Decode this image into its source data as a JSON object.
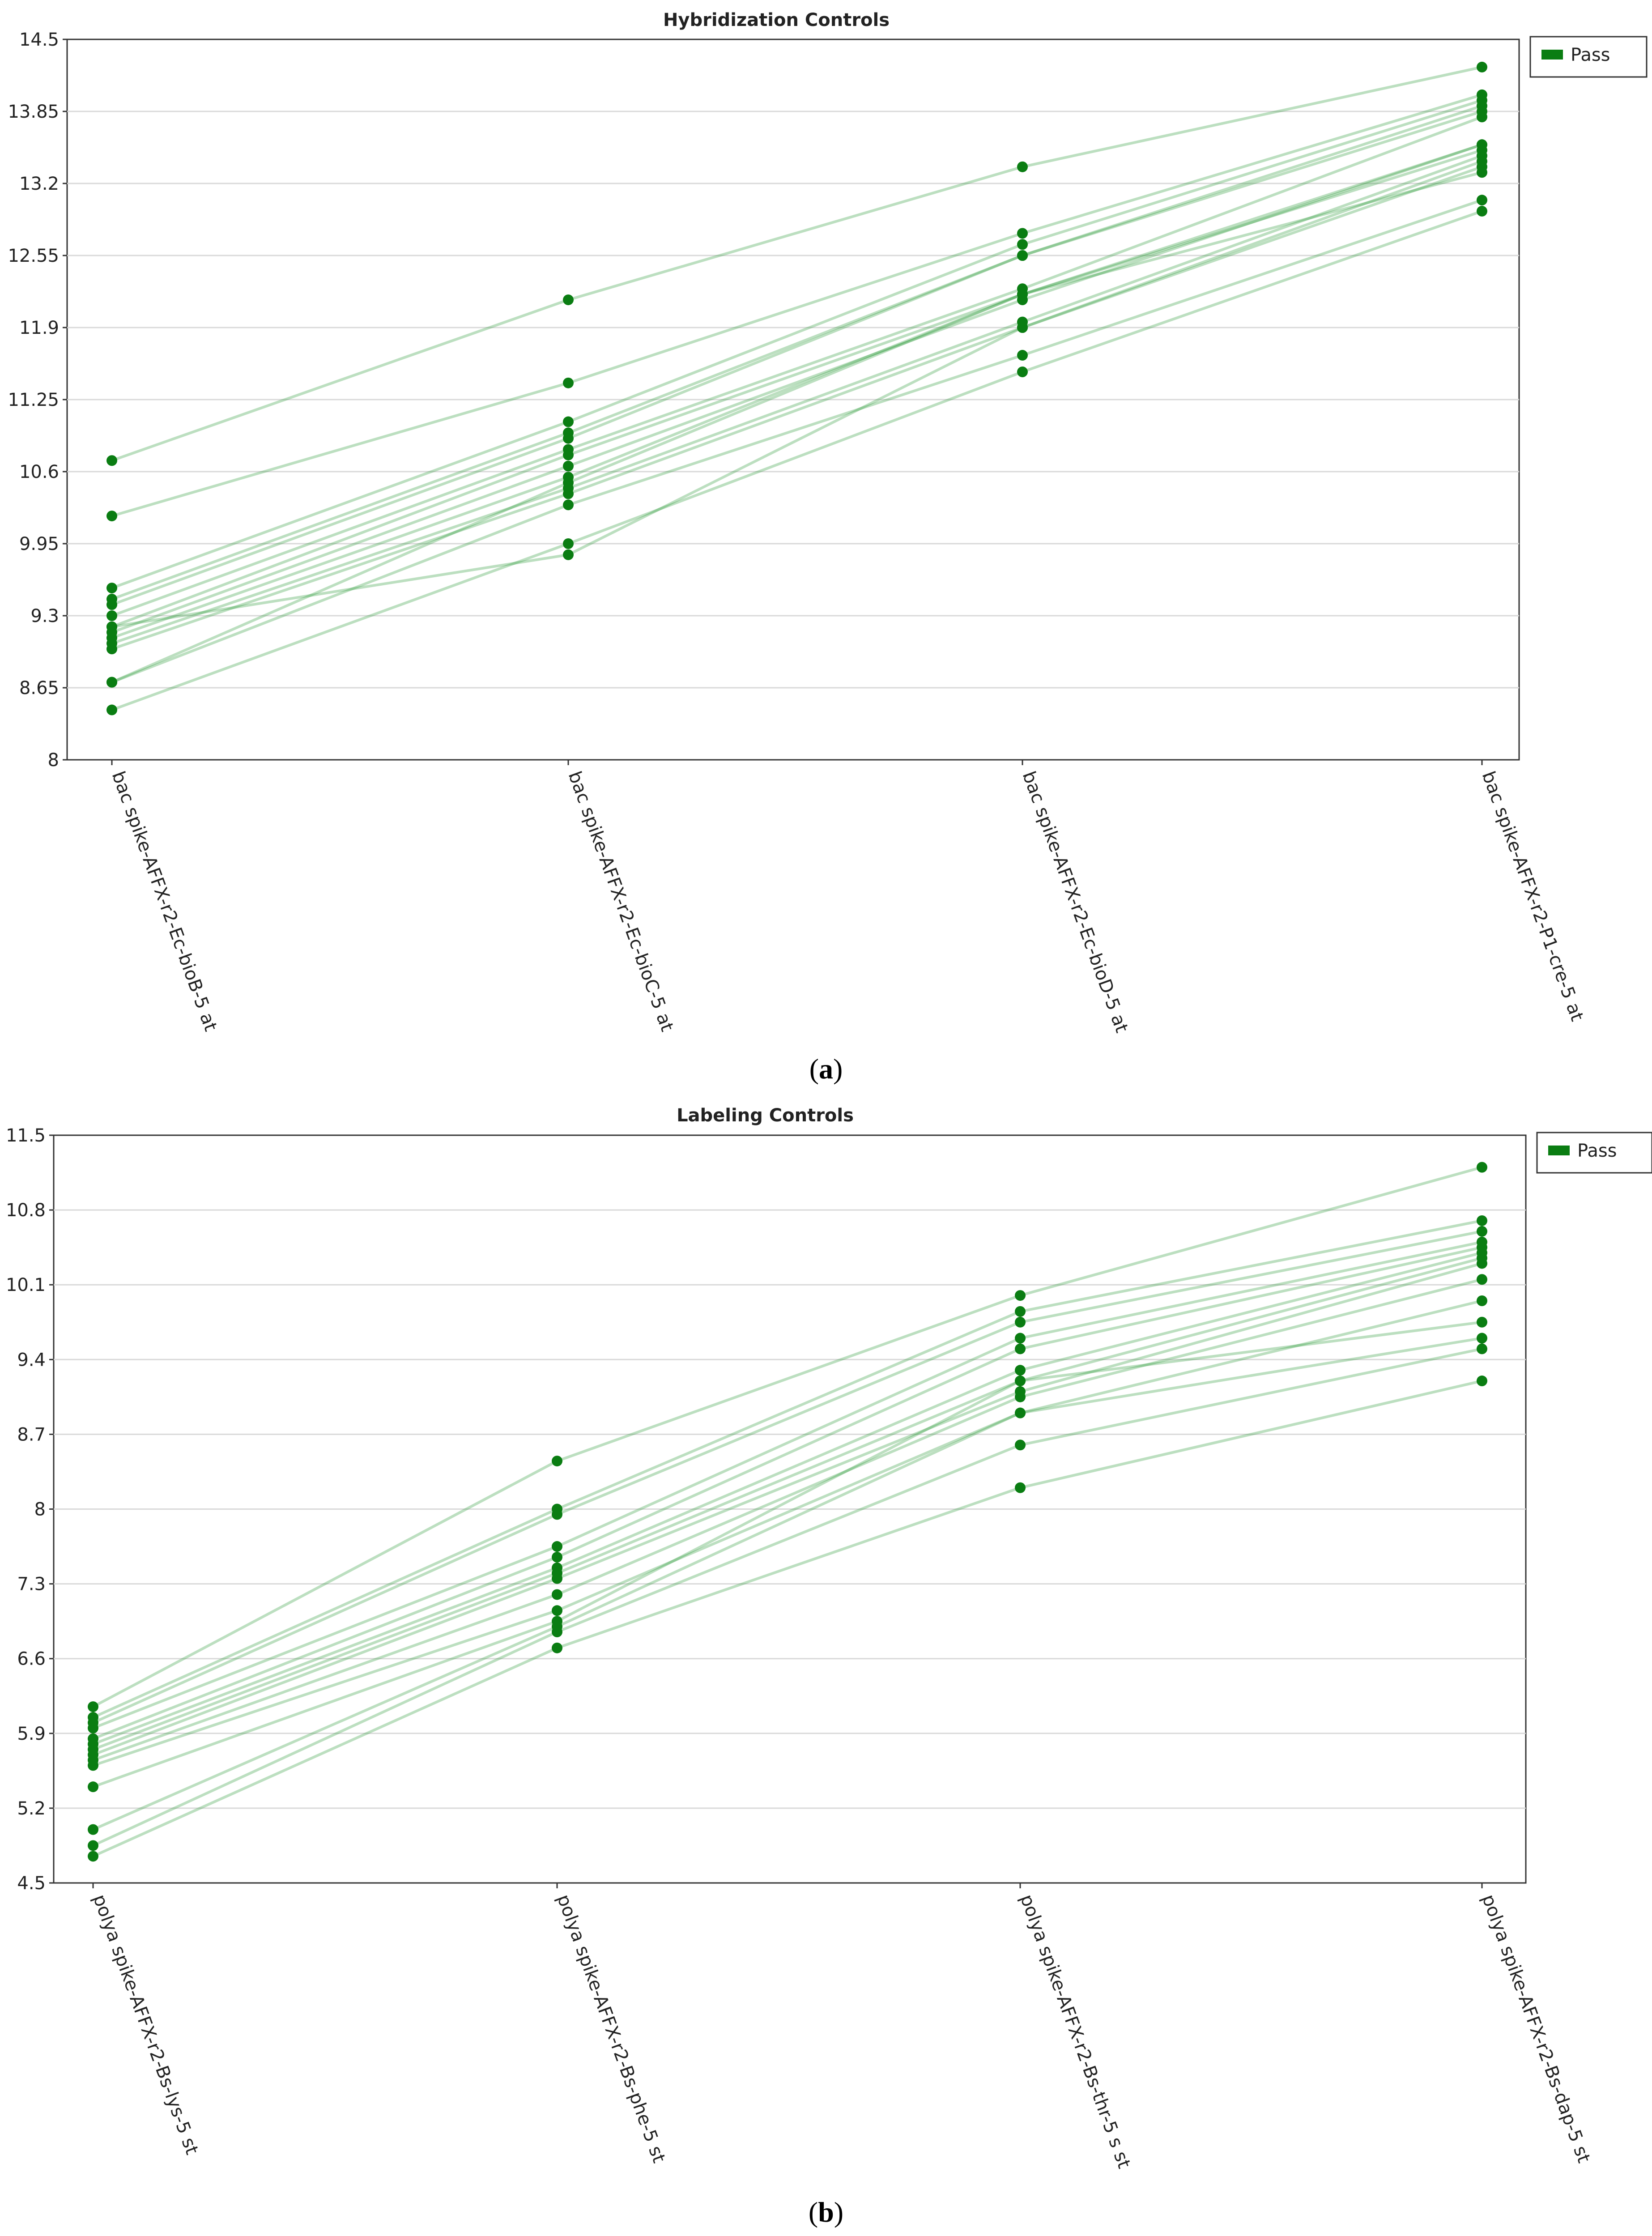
{
  "figure": {
    "caption_a": "a",
    "caption_b": "b"
  },
  "chart_data": [
    {
      "id": "a",
      "type": "line",
      "title": "Hybridization Controls",
      "xlabel": "",
      "ylabel": "",
      "ylim": [
        8,
        14.5
      ],
      "yticks": [
        "14.5",
        "13.85",
        "13.2",
        "12.55",
        "11.9",
        "11.25",
        "10.6",
        "9.95",
        "9.3",
        "8.65",
        "8"
      ],
      "ytick_values": [
        14.5,
        13.85,
        13.2,
        12.55,
        11.9,
        11.25,
        10.6,
        9.95,
        9.3,
        8.65,
        8
      ],
      "grid": true,
      "legend": {
        "position": "top-right",
        "label": "Pass",
        "color": "#0a7d12"
      },
      "line_color": "#2e9a3a",
      "point_color": "#0a7d12",
      "categories": [
        "bac spike-AFFX-r2-Ec-bioB-5 at",
        "bac spike-AFFX-r2-Ec-bioC-5 at",
        "bac spike-AFFX-r2-Ec-bioD-5 at",
        "bac spike-AFFX-r2-P1-cre-5 at"
      ],
      "series": [
        {
          "name": "Pass",
          "values": [
            10.7,
            12.15,
            13.35,
            14.25
          ]
        },
        {
          "name": "Pass",
          "values": [
            10.2,
            11.4,
            12.75,
            14.0
          ]
        },
        {
          "name": "Pass",
          "values": [
            9.55,
            11.05,
            12.65,
            13.95
          ]
        },
        {
          "name": "Pass",
          "values": [
            9.45,
            10.95,
            12.55,
            13.9
          ]
        },
        {
          "name": "Pass",
          "values": [
            9.4,
            10.9,
            12.55,
            13.85
          ]
        },
        {
          "name": "Pass",
          "values": [
            9.3,
            10.8,
            12.25,
            13.8
          ]
        },
        {
          "name": "Pass",
          "values": [
            9.2,
            10.75,
            12.2,
            13.55
          ]
        },
        {
          "name": "Pass",
          "values": [
            9.15,
            10.65,
            12.15,
            13.55
          ]
        },
        {
          "name": "Pass",
          "values": [
            9.1,
            10.55,
            12.2,
            13.5
          ]
        },
        {
          "name": "Pass",
          "values": [
            9.05,
            10.45,
            11.95,
            13.45
          ]
        },
        {
          "name": "Pass",
          "values": [
            9.0,
            10.4,
            11.9,
            13.35
          ]
        },
        {
          "name": "Pass",
          "values": [
            8.7,
            10.5,
            12.2,
            13.3
          ]
        },
        {
          "name": "Pass",
          "values": [
            8.7,
            10.3,
            11.65,
            13.05
          ]
        },
        {
          "name": "Pass",
          "values": [
            8.45,
            9.95,
            11.5,
            12.95
          ]
        },
        {
          "name": "Pass",
          "values": [
            9.2,
            9.85,
            11.9,
            13.4
          ]
        }
      ]
    },
    {
      "id": "b",
      "type": "line",
      "title": "Labeling Controls",
      "xlabel": "",
      "ylabel": "",
      "ylim": [
        4.5,
        11.5
      ],
      "yticks": [
        "11.5",
        "10.8",
        "10.1",
        "9.4",
        "8.7",
        "8",
        "7.3",
        "6.6",
        "5.9",
        "5.2",
        "4.5"
      ],
      "ytick_values": [
        11.5,
        10.8,
        10.1,
        9.4,
        8.7,
        8,
        7.3,
        6.6,
        5.9,
        5.2,
        4.5
      ],
      "grid": true,
      "legend": {
        "position": "top-right",
        "label": "Pass",
        "color": "#0a7d12"
      },
      "line_color": "#2e9a3a",
      "point_color": "#0a7d12",
      "categories": [
        "polya spike-AFFX-r2-Bs-lys-5 st",
        "polya spike-AFFX-r2-Bs-phe-5 st",
        "polya spike-AFFX-r2-Bs-thr-5 s st",
        "polya spike-AFFX-r2-Bs-dap-5 st"
      ],
      "series": [
        {
          "name": "Pass",
          "values": [
            6.15,
            8.45,
            10.0,
            11.2
          ]
        },
        {
          "name": "Pass",
          "values": [
            6.05,
            8.0,
            9.85,
            10.7
          ]
        },
        {
          "name": "Pass",
          "values": [
            6.0,
            7.95,
            9.75,
            10.6
          ]
        },
        {
          "name": "Pass",
          "values": [
            5.95,
            7.65,
            9.6,
            10.5
          ]
        },
        {
          "name": "Pass",
          "values": [
            5.85,
            7.55,
            9.5,
            10.45
          ]
        },
        {
          "name": "Pass",
          "values": [
            5.8,
            7.45,
            9.3,
            10.4
          ]
        },
        {
          "name": "Pass",
          "values": [
            5.75,
            7.4,
            9.2,
            10.35
          ]
        },
        {
          "name": "Pass",
          "values": [
            5.7,
            7.35,
            9.1,
            10.3
          ]
        },
        {
          "name": "Pass",
          "values": [
            5.65,
            7.2,
            9.05,
            10.15
          ]
        },
        {
          "name": "Pass",
          "values": [
            5.6,
            7.05,
            8.9,
            9.95
          ]
        },
        {
          "name": "Pass",
          "values": [
            5.4,
            6.95,
            9.2,
            9.75
          ]
        },
        {
          "name": "Pass",
          "values": [
            5.0,
            6.9,
            8.9,
            9.6
          ]
        },
        {
          "name": "Pass",
          "values": [
            4.85,
            6.85,
            8.6,
            9.5
          ]
        },
        {
          "name": "Pass",
          "values": [
            4.75,
            6.7,
            8.2,
            9.2
          ]
        }
      ]
    }
  ]
}
